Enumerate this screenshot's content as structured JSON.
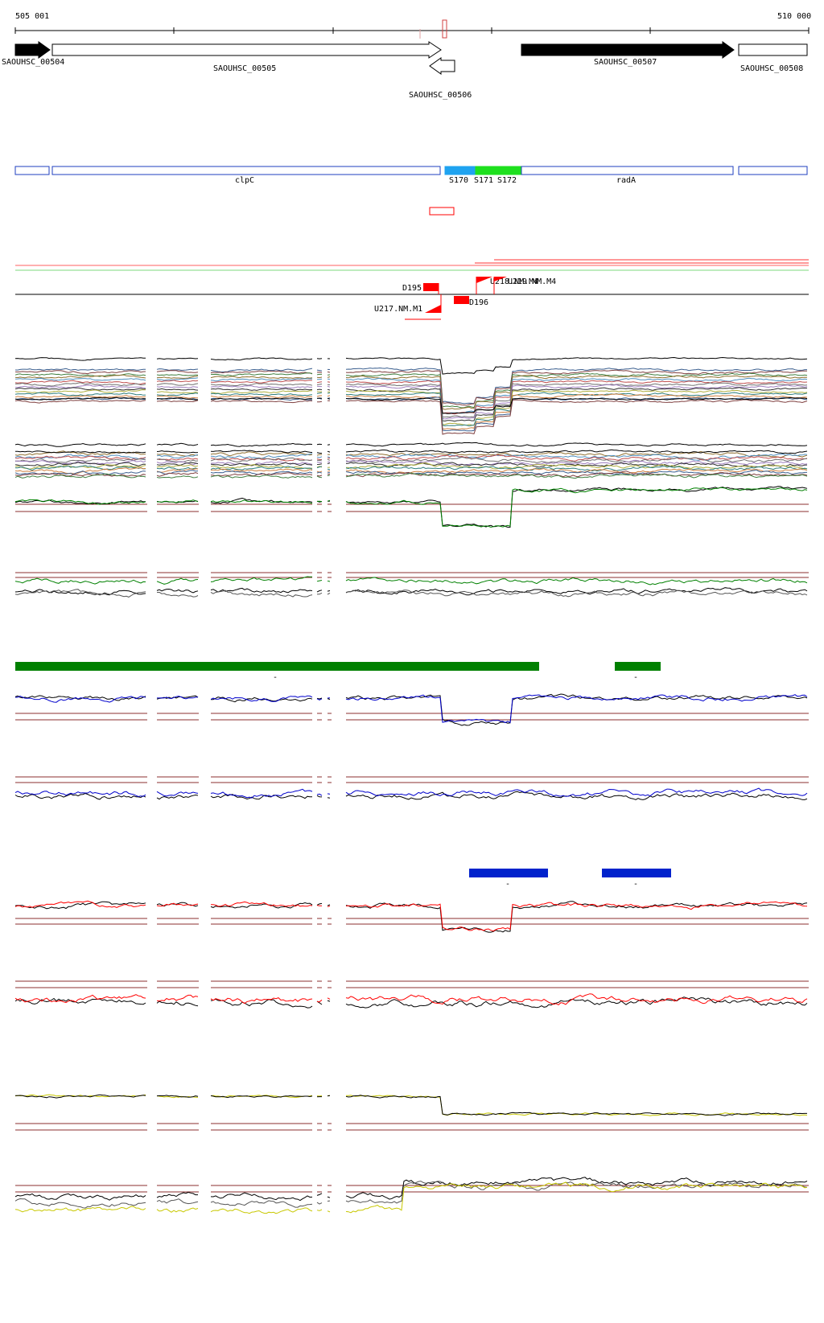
{
  "ruler": {
    "start_label": "505 001",
    "end_label": "510 000"
  },
  "genes": [
    {
      "id": "SAOUHSC_00504",
      "strand": "+",
      "fill": "black"
    },
    {
      "id": "SAOUHSC_00505",
      "strand": "+",
      "fill": "white"
    },
    {
      "id": "SAOUHSC_00506",
      "strand": "-",
      "fill": "white"
    },
    {
      "id": "SAOUHSC_00507",
      "strand": "+",
      "fill": "black"
    },
    {
      "id": "SAOUHSC_00508",
      "strand": "+",
      "fill": "white"
    }
  ],
  "transcripts": [
    {
      "label": "",
      "color": "#1f3fbf"
    },
    {
      "label": "clpC",
      "color": "#1f3fbf"
    },
    {
      "label": "S170",
      "color": "#1fa3f0"
    },
    {
      "label": "S171",
      "color": "#1ee01e"
    },
    {
      "label": "S172",
      "color": "#1ee01e"
    },
    {
      "label": "radA",
      "color": "#1f3fbf"
    },
    {
      "label": "",
      "color": "#1f3fbf"
    }
  ],
  "features": [
    {
      "label": "D195"
    },
    {
      "label": "D196"
    },
    {
      "label": "U217.NM.M1"
    },
    {
      "label": "U218.NM.M4"
    },
    {
      "label": "U219.NM.M4"
    }
  ],
  "colors": {
    "gene_black": "#000000",
    "transcript_outline": "#1f3fbf",
    "feature_red": "#ff0000",
    "track_green": "#008000",
    "track_blue": "#0000cc",
    "track_red": "#ff0000",
    "track_yellow": "#c8c800",
    "threshold": "#8b2f2f"
  },
  "bars": {
    "green": [
      "-",
      "-"
    ],
    "blue": [
      "-",
      "-"
    ]
  }
}
